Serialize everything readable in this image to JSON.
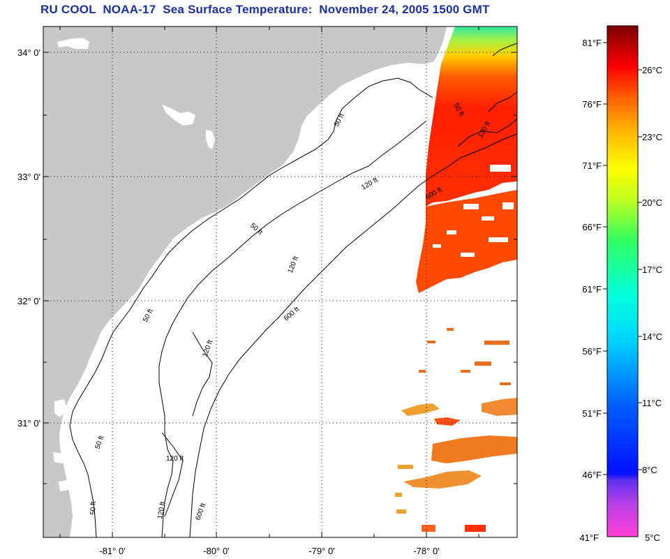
{
  "title": "RU COOL  NOAA-17  Sea Surface Temperature:  November 24, 2005 1500 GMT",
  "colors": {
    "land": "#c8c8c8",
    "ocean": "#ffffff",
    "title": "#1b2fa8"
  },
  "map": {
    "lat_labels": [
      "34° 0'",
      "33° 0'",
      "32° 0'",
      "31° 0'"
    ],
    "lon_labels": [
      "-81° 0'",
      "-80° 0'",
      "-79° 0'",
      "-78° 0'"
    ],
    "contour_labels": {
      "ft50": "50 ft",
      "ft120": "120 ft",
      "ft600": "600 ft"
    }
  },
  "colorbar": {
    "fahrenheit": [
      "81°F",
      "76°F",
      "71°F",
      "66°F",
      "61°F",
      "56°F",
      "51°F",
      "46°F",
      "41°F"
    ],
    "celsius": [
      "26°C",
      "23°C",
      "20°C",
      "17°C",
      "14°C",
      "11°C",
      "8°C",
      "5°C"
    ]
  }
}
